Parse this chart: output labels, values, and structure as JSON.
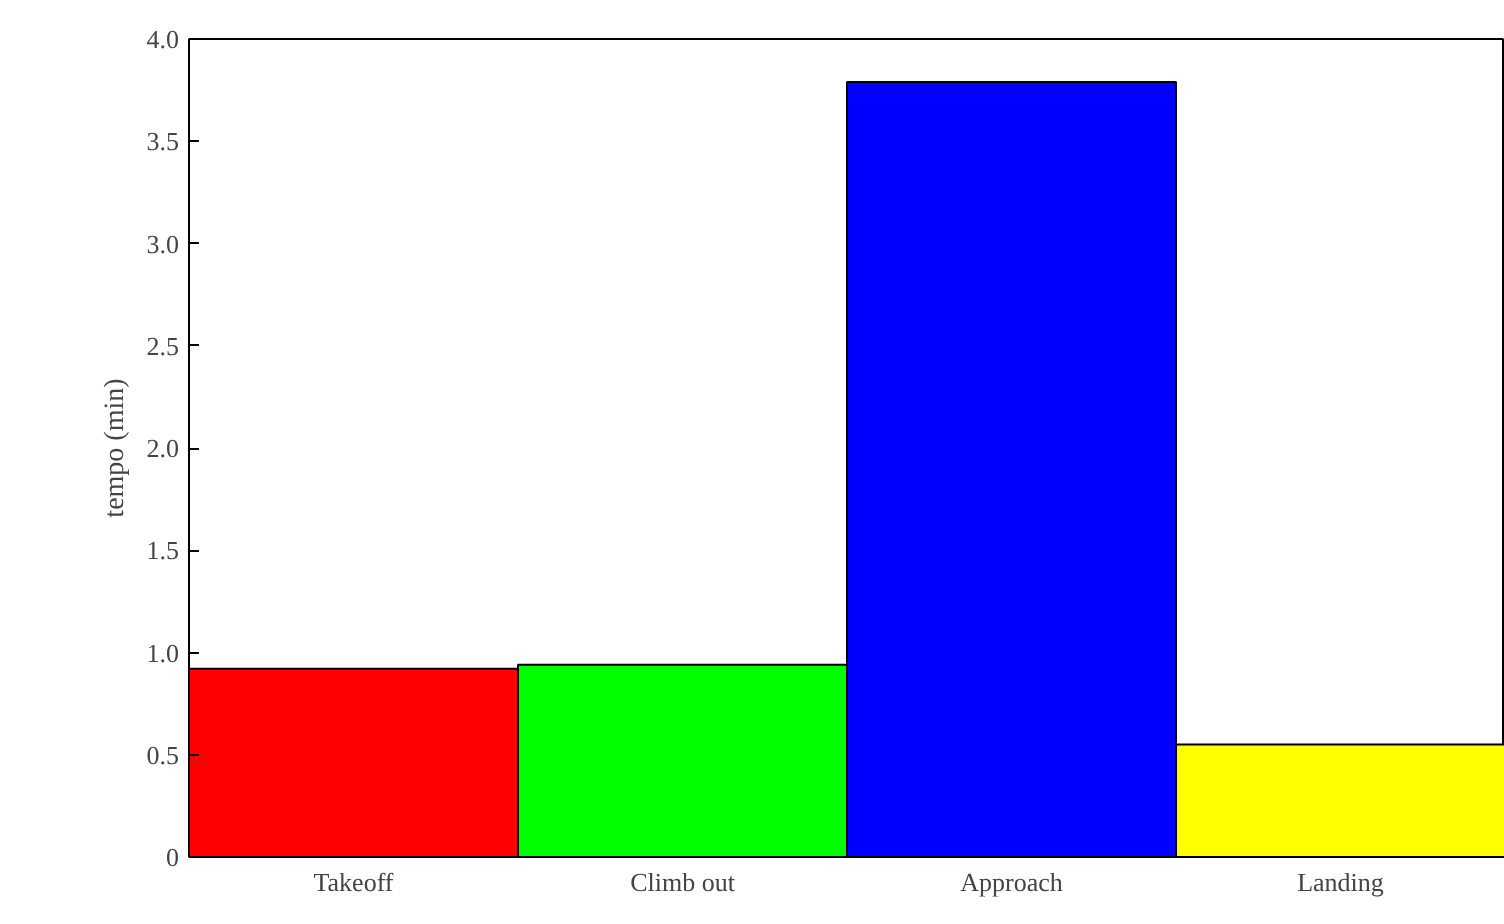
{
  "chart_data": {
    "type": "bar",
    "ylabel": "tempo (min)",
    "categories": [
      "Takeoff",
      "Climb out",
      "Approach",
      "Landing"
    ],
    "values": [
      0.92,
      0.94,
      3.79,
      0.55
    ],
    "colors": [
      "#ff0000",
      "#00ff00",
      "#0000ff",
      "#ffff00"
    ],
    "ylim": [
      0,
      4.0
    ],
    "yticks": [
      0,
      0.5,
      {
        "value": 1,
        "label": "1.0"
      },
      1.5,
      {
        "value": 2,
        "label": "2.0"
      },
      2.5,
      {
        "value": 3,
        "label": "3.0"
      },
      3.5,
      {
        "value": 4,
        "label": "4.0"
      }
    ],
    "grid": false
  }
}
